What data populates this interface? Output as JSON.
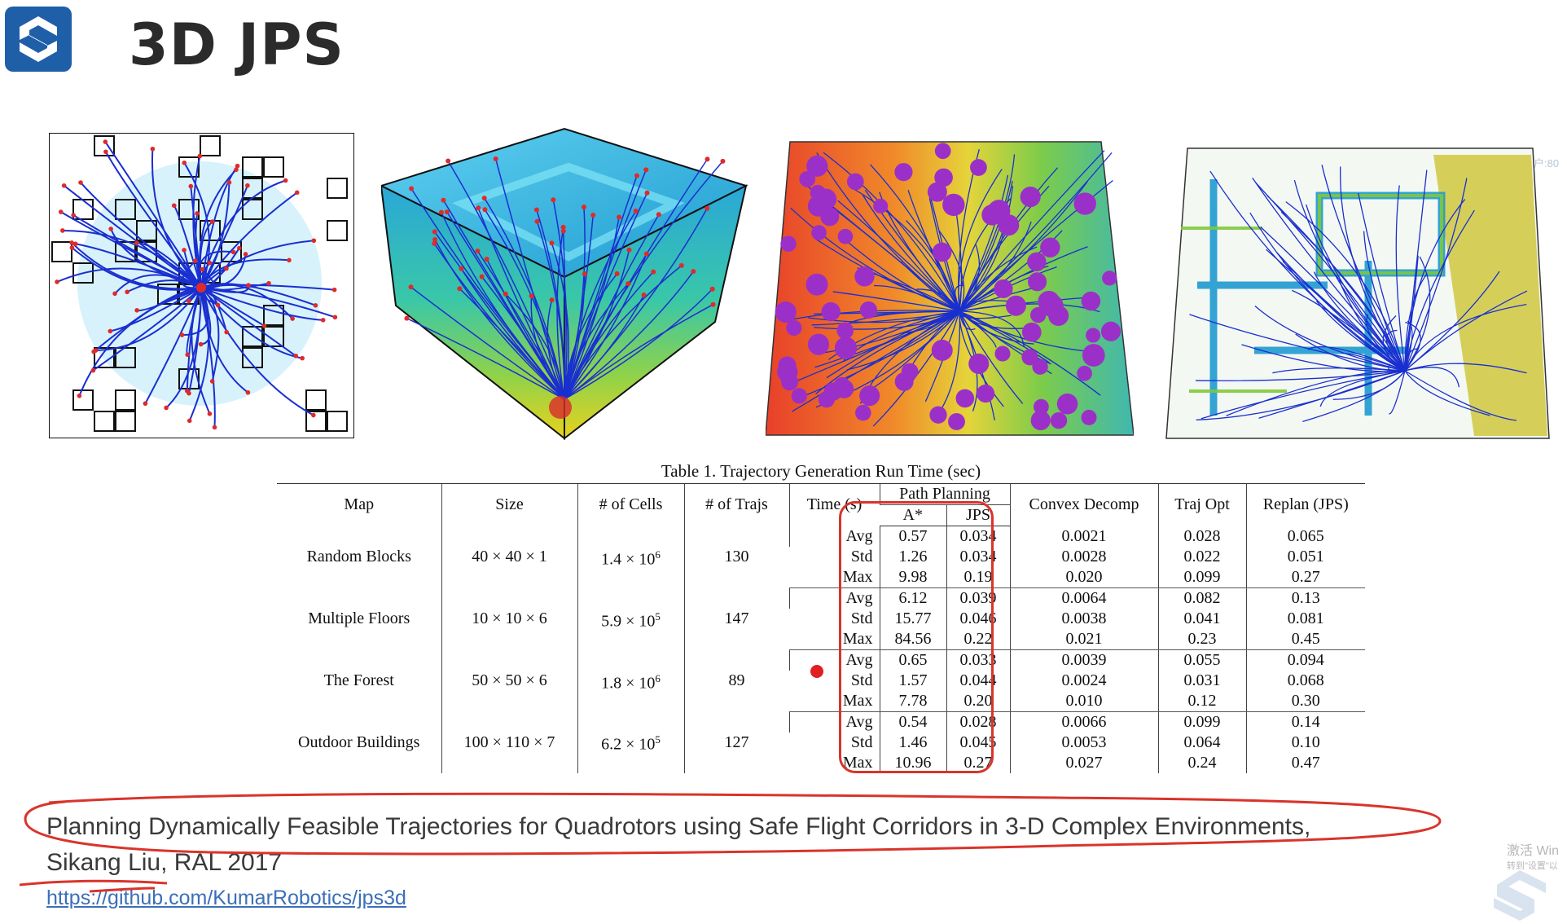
{
  "slide": {
    "title": "3D JPS"
  },
  "watermark": {
    "top_right": "年期用户:80",
    "activate_line1": "激活 Win",
    "activate_line2": "转到\"设置\"以"
  },
  "table": {
    "caption": "Table 1. Trajectory Generation Run Time (sec)",
    "headers": {
      "map": "Map",
      "size": "Size",
      "cells": "# of Cells",
      "trajs": "# of Trajs",
      "time": "Time (s)",
      "path_planning": "Path Planning",
      "astar": "A*",
      "jps": "JPS",
      "convex": "Convex Decomp",
      "trajopt": "Traj Opt",
      "replan": "Replan (JPS)"
    },
    "groups": [
      {
        "map": "Random Blocks",
        "size": "40 × 40 × 1",
        "cells_base": "1.4 × 10",
        "cells_exp": "6",
        "trajs": "130",
        "rows": [
          {
            "metric": "Avg",
            "astar": "0.57",
            "jps": "0.034",
            "convex": "0.0021",
            "trajopt": "0.028",
            "replan": "0.065"
          },
          {
            "metric": "Std",
            "astar": "1.26",
            "jps": "0.034",
            "convex": "0.0028",
            "trajopt": "0.022",
            "replan": "0.051"
          },
          {
            "metric": "Max",
            "astar": "9.98",
            "jps": "0.19",
            "convex": "0.020",
            "trajopt": "0.099",
            "replan": "0.27"
          }
        ]
      },
      {
        "map": "Multiple Floors",
        "size": "10 × 10 × 6",
        "cells_base": "5.9 × 10",
        "cells_exp": "5",
        "trajs": "147",
        "rows": [
          {
            "metric": "Avg",
            "astar": "6.12",
            "jps": "0.039",
            "convex": "0.0064",
            "trajopt": "0.082",
            "replan": "0.13"
          },
          {
            "metric": "Std",
            "astar": "15.77",
            "jps": "0.046",
            "convex": "0.0038",
            "trajopt": "0.041",
            "replan": "0.081"
          },
          {
            "metric": "Max",
            "astar": "84.56",
            "jps": "0.22",
            "convex": "0.021",
            "trajopt": "0.23",
            "replan": "0.45"
          }
        ]
      },
      {
        "map": "The Forest",
        "size": "50 × 50 × 6",
        "cells_base": "1.8 × 10",
        "cells_exp": "6",
        "trajs": "89",
        "rows": [
          {
            "metric": "Avg",
            "astar": "0.65",
            "jps": "0.033",
            "convex": "0.0039",
            "trajopt": "0.055",
            "replan": "0.094"
          },
          {
            "metric": "Std",
            "astar": "1.57",
            "jps": "0.044",
            "convex": "0.0024",
            "trajopt": "0.031",
            "replan": "0.068"
          },
          {
            "metric": "Max",
            "astar": "7.78",
            "jps": "0.20",
            "convex": "0.010",
            "trajopt": "0.12",
            "replan": "0.30"
          }
        ]
      },
      {
        "map": "Outdoor Buildings",
        "size": "100 × 110 × 7",
        "cells_base": "6.2 × 10",
        "cells_exp": "5",
        "trajs": "127",
        "rows": [
          {
            "metric": "Avg",
            "astar": "0.54",
            "jps": "0.028",
            "convex": "0.0066",
            "trajopt": "0.099",
            "replan": "0.14"
          },
          {
            "metric": "Std",
            "astar": "1.46",
            "jps": "0.045",
            "convex": "0.0053",
            "trajopt": "0.064",
            "replan": "0.10"
          },
          {
            "metric": "Max",
            "astar": "10.96",
            "jps": "0.27",
            "convex": "0.027",
            "trajopt": "0.24",
            "replan": "0.47"
          }
        ]
      }
    ]
  },
  "reference": {
    "paper_title": "Planning Dynamically Feasible Trajectories for Quadrotors using Safe Flight Corridors in 3-D Complex Environments,",
    "author": "Sikang Liu",
    "venue": ", RAL 2017",
    "link": "https://github.com/KumarRobotics/jps3d"
  },
  "colors": {
    "logo_bg": "#1f5fa8",
    "annotation_red": "#d9342b",
    "trajectory_blue": "#1a2fd0",
    "obstacle_purple": "#9b30c8",
    "link_blue": "#3b6fb8"
  }
}
